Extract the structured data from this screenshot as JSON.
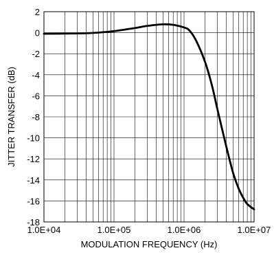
{
  "chart_data": {
    "type": "line",
    "xlabel": "MODULATION FREQUENCY (Hz)",
    "ylabel": "JITTER TRANSFER (dB)",
    "x_scale": "log",
    "xlim": [
      10000,
      10000000
    ],
    "ylim": [
      -18,
      2
    ],
    "x_ticks": [
      10000,
      100000,
      1000000,
      10000000
    ],
    "x_tick_labels": [
      "1.0E+04",
      "1.0E+05",
      "1.0E+06",
      "1.0E+07"
    ],
    "y_ticks": [
      2,
      0,
      -2,
      -4,
      -6,
      -8,
      -10,
      -12,
      -14,
      -16,
      -18
    ],
    "y_tick_labels": [
      "2",
      "0",
      "-2",
      "-4",
      "-6",
      "-8",
      "-10",
      "-12",
      "-14",
      "-16",
      "-18"
    ],
    "grid": true,
    "series": [
      {
        "color": "#000000",
        "x": [
          10000,
          20000,
          40000,
          70000,
          100000,
          200000,
          300000,
          500000,
          700000,
          1000000,
          1200000,
          1500000,
          2000000,
          2500000,
          3000000,
          4000000,
          5000000,
          6000000,
          7000000,
          8000000,
          10000000
        ],
        "y": [
          -0.1,
          -0.08,
          -0.05,
          0.05,
          0.15,
          0.45,
          0.65,
          0.8,
          0.75,
          0.5,
          0.2,
          -0.8,
          -2.8,
          -5.0,
          -7.3,
          -10.8,
          -13.3,
          -14.8,
          -15.7,
          -16.3,
          -16.8
        ]
      }
    ]
  }
}
